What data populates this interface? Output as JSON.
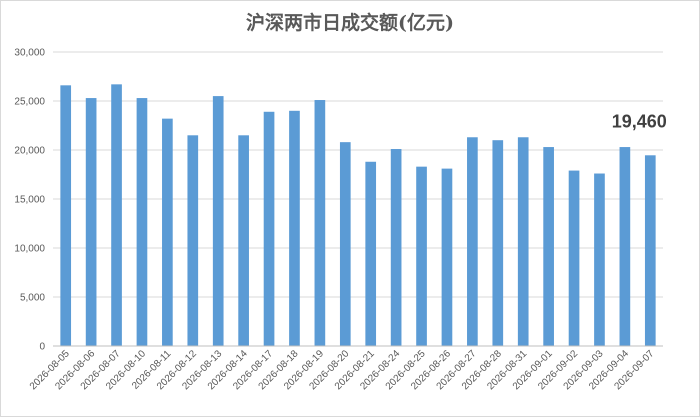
{
  "chart_data": {
    "type": "bar",
    "title": "沪深两市日成交额(亿元)",
    "xlabel": "",
    "ylabel": "",
    "ylim": [
      0,
      30000
    ],
    "yticks": [
      "0",
      "5,000",
      "10,000",
      "15,000",
      "20,000",
      "25,000",
      "30,000"
    ],
    "ytick_values": [
      0,
      5000,
      10000,
      15000,
      20000,
      25000,
      30000
    ],
    "grid": true,
    "legend": "none",
    "bar_color": "#5b9bd5",
    "categories": [
      "2026-08-05",
      "2026-08-06",
      "2026-08-07",
      "2026-08-10",
      "2026-08-11",
      "2026-08-12",
      "2026-08-13",
      "2026-08-14",
      "2026-08-17",
      "2026-08-18",
      "2026-08-19",
      "2026-08-20",
      "2026-08-21",
      "2026-08-24",
      "2026-08-25",
      "2026-08-26",
      "2026-08-27",
      "2026-08-28",
      "2026-08-31",
      "2026-09-01",
      "2026-09-02",
      "2026-09-03",
      "2026-09-04",
      "2026-09-07"
    ],
    "values": [
      26600,
      25300,
      26700,
      25300,
      23200,
      21500,
      25500,
      21500,
      23900,
      24000,
      25100,
      20800,
      18800,
      20100,
      18300,
      18100,
      21300,
      21000,
      21300,
      20300,
      17900,
      17600,
      20300,
      19460
    ],
    "data_labels": [
      {
        "index": 23,
        "text": "19,460"
      }
    ]
  }
}
